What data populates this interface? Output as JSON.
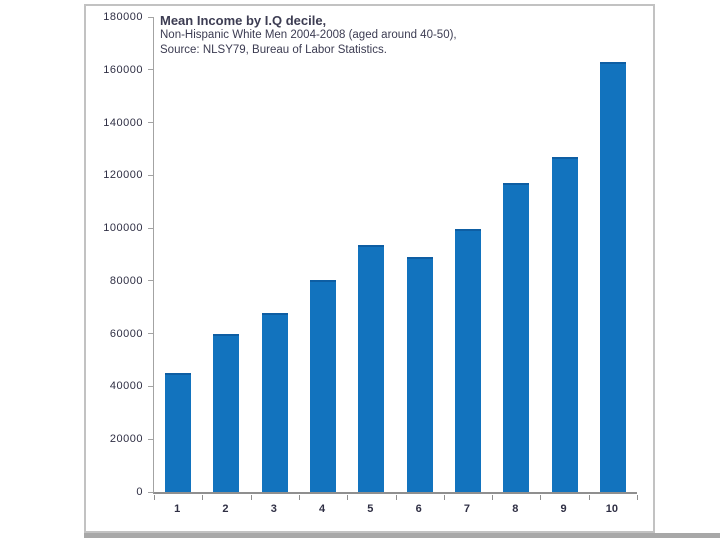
{
  "page": {
    "background": "#ffffff"
  },
  "chart_data": {
    "type": "bar",
    "title": "Mean Income by I.Q decile,",
    "subtitle1": "Non-Hispanic White Men 2004-2008 (aged around 40-50),",
    "subtitle2": "Source: NLSY79, Bureau of Labor Statistics.",
    "categories": [
      "1",
      "2",
      "3",
      "4",
      "5",
      "6",
      "7",
      "8",
      "9",
      "10"
    ],
    "values": [
      45000,
      60000,
      68000,
      80500,
      93500,
      89000,
      99800,
      117000,
      127000,
      163000
    ],
    "xlabel": "",
    "ylabel": "",
    "ylim": [
      0,
      180000
    ],
    "ytick_step": 20000,
    "grid": false,
    "legend": "none",
    "bar_color": "#1273be",
    "bar_top_color": "#0e5ea3",
    "axis_color": "#8f8f8f",
    "text_color": "#3c3c52"
  }
}
